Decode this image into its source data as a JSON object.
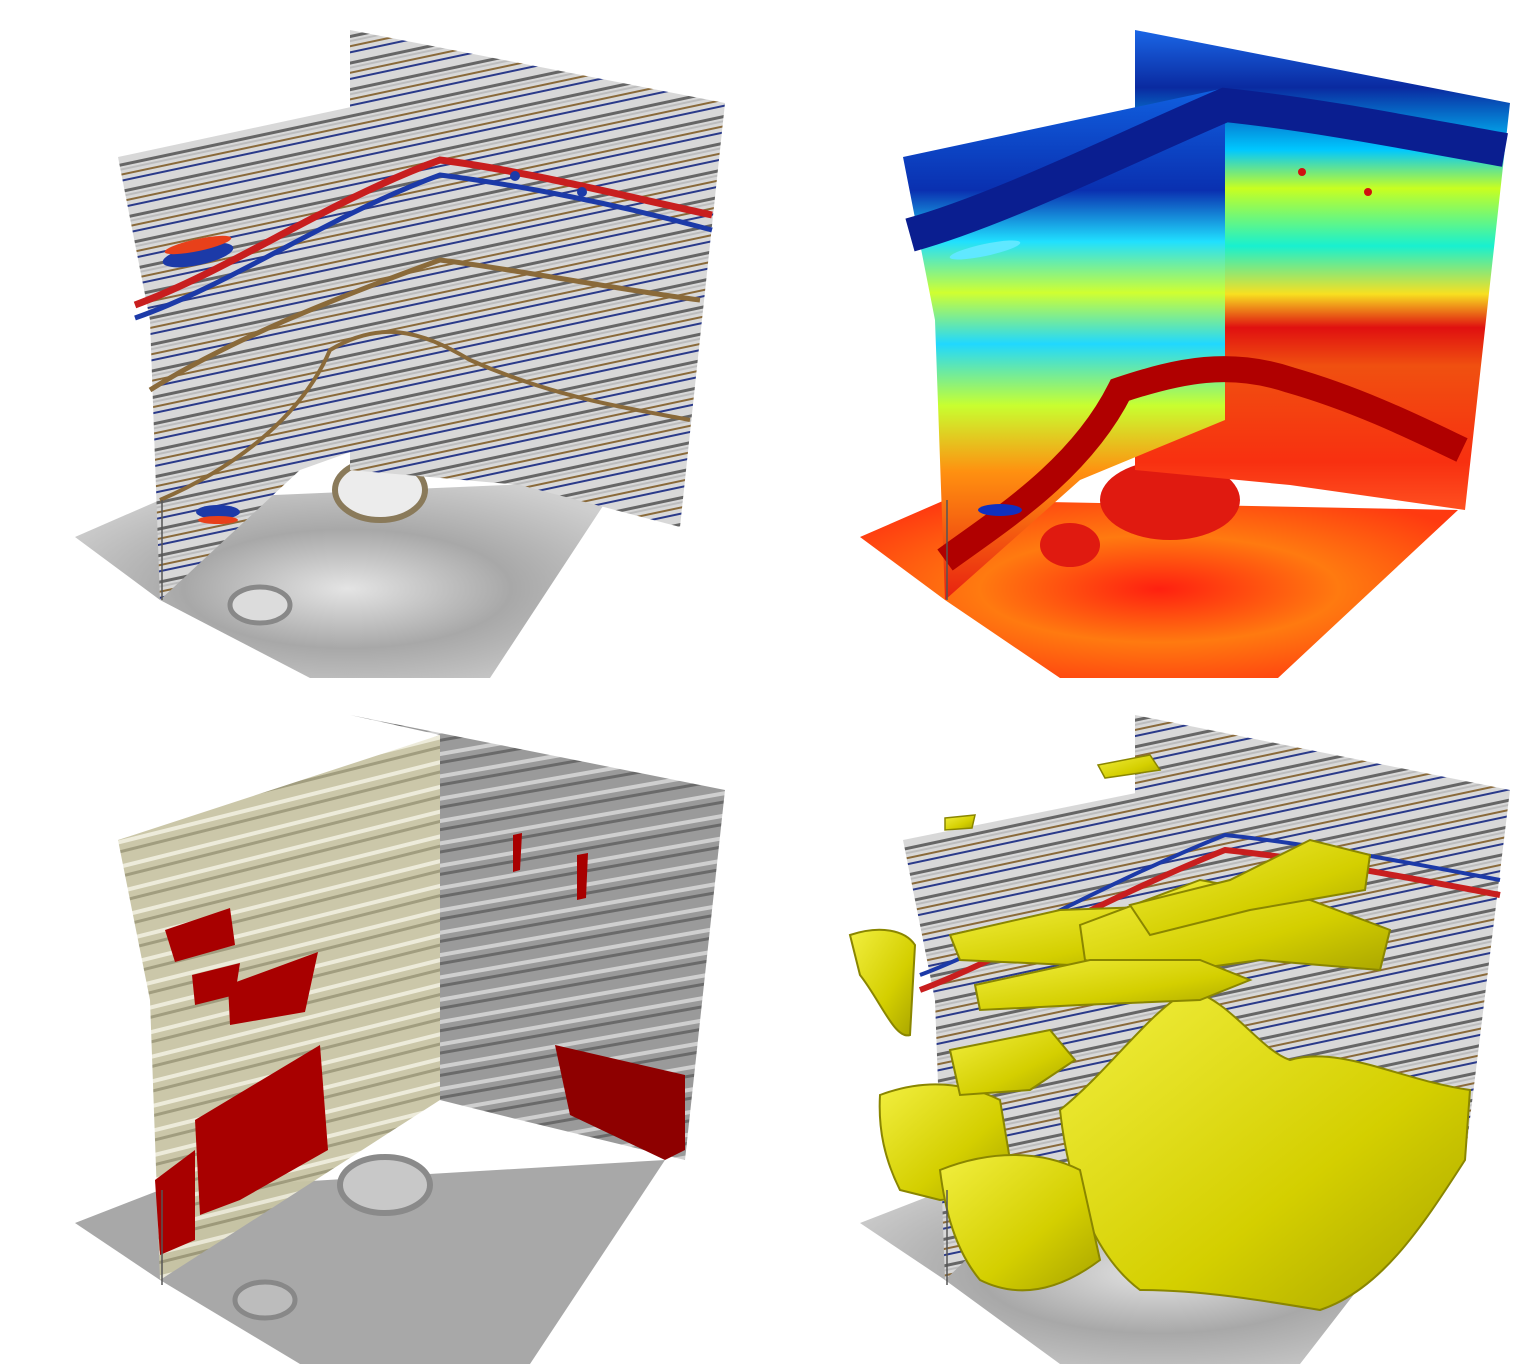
{
  "figure": {
    "panels": [
      {
        "id": "seismic-amplitude",
        "colormap": "gray-red-blue"
      },
      {
        "id": "attribute-jet",
        "colormap": "jet"
      },
      {
        "id": "red-mask-overlay",
        "colormap": "gray-with-red-mask"
      },
      {
        "id": "yellow-isosurface",
        "colormap": "gray-red-blue-with-yellow-bodies"
      }
    ],
    "colors": {
      "background": "#ffffff",
      "seismic_red": "#c81e1e",
      "seismic_blue": "#1c3aa8",
      "seismic_brown": "#8a6a3a",
      "mask_red": "#a80000",
      "iso_yellow": "#d9d400",
      "jet_blue": "#1060e0",
      "jet_red": "#e82010"
    }
  }
}
